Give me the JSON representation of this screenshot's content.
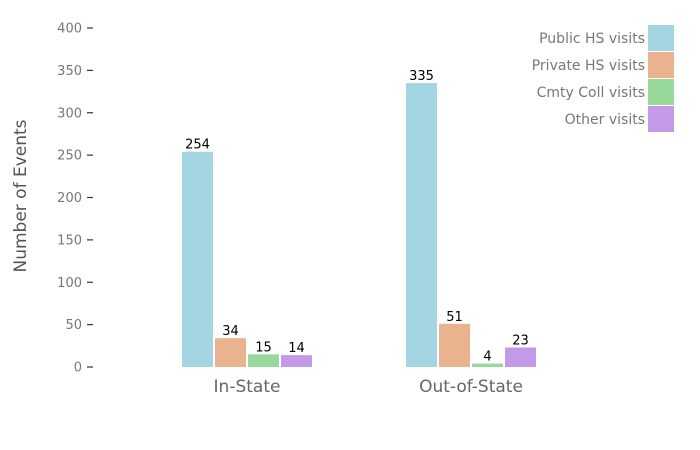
{
  "chart_data": {
    "type": "bar",
    "categories": [
      "In-State",
      "Out-of-State"
    ],
    "series": [
      {
        "name": "Public HS visits",
        "values": [
          254,
          335
        ],
        "color": "#a3d5e3"
      },
      {
        "name": "Private HS visits",
        "values": [
          34,
          51
        ],
        "color": "#e8b38e"
      },
      {
        "name": "Cmty Coll visits",
        "values": [
          15,
          4
        ],
        "color": "#98d89a"
      },
      {
        "name": "Other visits",
        "values": [
          14,
          23
        ],
        "color": "#c39ae8"
      }
    ],
    "ylabel": "Number of Events",
    "xlabel": "",
    "ylim": [
      0,
      400
    ],
    "yticks": [
      "0",
      "50",
      "100",
      "150",
      "200",
      "250",
      "300",
      "350",
      "400"
    ],
    "legend_position": "top-right",
    "grid": false
  }
}
